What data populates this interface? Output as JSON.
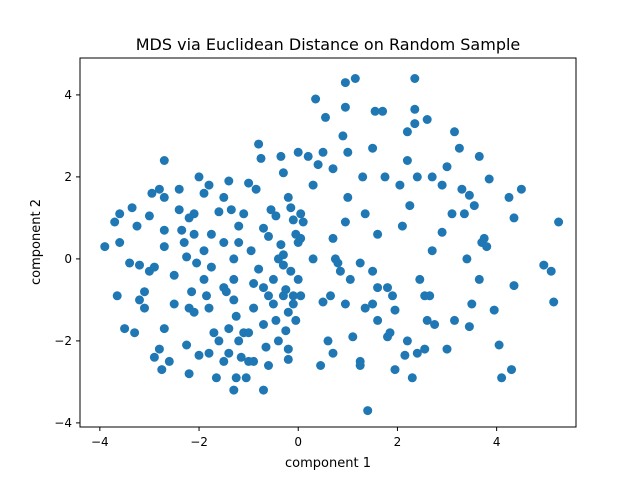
{
  "chart_data": {
    "type": "scatter",
    "title": "MDS via Euclidean Distance on Random Sample",
    "xlabel": "component 1",
    "ylabel": "component 2",
    "xlim": [
      -4.4,
      5.6
    ],
    "ylim": [
      -4.1,
      4.9
    ],
    "xticks": [
      -4,
      -2,
      0,
      2,
      4
    ],
    "yticks": [
      -4,
      -2,
      0,
      2,
      4
    ],
    "grid": false,
    "marker_color": "#1f77b4",
    "points": [
      [
        -3.9,
        0.3
      ],
      [
        -3.7,
        0.9
      ],
      [
        -3.6,
        1.1
      ],
      [
        -3.6,
        0.4
      ],
      [
        -3.65,
        -0.9
      ],
      [
        -3.4,
        -0.1
      ],
      [
        -3.35,
        1.25
      ],
      [
        -3.5,
        -1.7
      ],
      [
        -3.3,
        -1.8
      ],
      [
        -3.2,
        -1.0
      ],
      [
        -3.1,
        -1.2
      ],
      [
        -3.1,
        -0.8
      ],
      [
        -3.2,
        -0.15
      ],
      [
        -3.25,
        0.8
      ],
      [
        -3.0,
        1.05
      ],
      [
        -3.0,
        -0.3
      ],
      [
        -2.95,
        1.6
      ],
      [
        -2.9,
        -2.4
      ],
      [
        -2.8,
        -2.2
      ],
      [
        -2.8,
        1.7
      ],
      [
        -2.75,
        -2.7
      ],
      [
        -2.7,
        2.4
      ],
      [
        -2.7,
        1.5
      ],
      [
        -2.7,
        0.7
      ],
      [
        -2.7,
        0.3
      ],
      [
        -2.7,
        -1.7
      ],
      [
        -2.6,
        -2.5
      ],
      [
        -2.5,
        -0.4
      ],
      [
        -2.5,
        -1.1
      ],
      [
        -2.4,
        1.2
      ],
      [
        -2.4,
        1.7
      ],
      [
        -2.35,
        0.7
      ],
      [
        -2.3,
        0.4
      ],
      [
        -2.25,
        0.05
      ],
      [
        -2.25,
        -2.1
      ],
      [
        -2.2,
        1.0
      ],
      [
        -2.2,
        -2.8
      ],
      [
        -2.2,
        -1.2
      ],
      [
        -2.15,
        -0.8
      ],
      [
        -2.1,
        -1.3
      ],
      [
        -2.1,
        1.1
      ],
      [
        -2.1,
        0.6
      ],
      [
        -2.05,
        -0.1
      ],
      [
        -2.0,
        -2.35
      ],
      [
        -2.0,
        2.0
      ],
      [
        -1.9,
        1.6
      ],
      [
        -1.9,
        0.2
      ],
      [
        -1.9,
        -0.5
      ],
      [
        -1.85,
        -0.9
      ],
      [
        -1.8,
        -1.2
      ],
      [
        -1.8,
        -2.3
      ],
      [
        -1.8,
        1.8
      ],
      [
        -1.75,
        0.6
      ],
      [
        -1.75,
        -0.2
      ],
      [
        -1.7,
        -1.8
      ],
      [
        -1.65,
        -2.9
      ],
      [
        -1.6,
        -2.0
      ],
      [
        -1.6,
        1.15
      ],
      [
        -1.5,
        0.4
      ],
      [
        -1.5,
        -0.7
      ],
      [
        -1.5,
        1.5
      ],
      [
        -1.45,
        -0.8
      ],
      [
        -1.4,
        -2.3
      ],
      [
        -1.4,
        -1.7
      ],
      [
        -1.4,
        1.9
      ],
      [
        -1.35,
        1.2
      ],
      [
        -1.3,
        -1.0
      ],
      [
        -1.3,
        -0.5
      ],
      [
        -1.3,
        0.0
      ],
      [
        -1.25,
        -1.4
      ],
      [
        -1.25,
        -2.9
      ],
      [
        -1.2,
        0.8
      ],
      [
        -1.2,
        0.4
      ],
      [
        -1.2,
        -2.0
      ],
      [
        -1.15,
        -2.4
      ],
      [
        -1.1,
        1.1
      ],
      [
        -1.1,
        -1.8
      ],
      [
        -1.05,
        -2.9
      ],
      [
        -1.0,
        1.85
      ],
      [
        -1.0,
        -2.5
      ],
      [
        -0.95,
        0.2
      ],
      [
        -0.9,
        -0.6
      ],
      [
        -0.9,
        -1.2
      ],
      [
        -0.9,
        -2.5
      ],
      [
        -0.85,
        1.7
      ],
      [
        -0.8,
        2.8
      ],
      [
        -0.8,
        -0.25
      ],
      [
        -0.75,
        2.45
      ],
      [
        -0.7,
        -1.6
      ],
      [
        -0.7,
        -3.2
      ],
      [
        -0.7,
        0.75
      ],
      [
        -0.65,
        -2.15
      ],
      [
        -0.6,
        -2.6
      ],
      [
        -0.6,
        -0.9
      ],
      [
        -0.55,
        1.2
      ],
      [
        -0.5,
        -1.1
      ],
      [
        -0.45,
        -1.5
      ],
      [
        -0.4,
        -2.0
      ],
      [
        -0.35,
        2.5
      ],
      [
        -0.35,
        0.35
      ],
      [
        -0.3,
        0.1
      ],
      [
        -0.3,
        -0.15
      ],
      [
        -0.25,
        -0.75
      ],
      [
        -0.25,
        -1.75
      ],
      [
        -0.2,
        -2.45
      ],
      [
        -0.15,
        1.25
      ],
      [
        -0.1,
        0.95
      ],
      [
        -0.1,
        -1.1
      ],
      [
        -0.05,
        -1.5
      ],
      [
        -0.0,
        -0.5
      ],
      [
        0.0,
        2.6
      ],
      [
        0.0,
        0.4
      ],
      [
        -0.15,
        -0.3
      ],
      [
        -0.2,
        -2.2
      ],
      [
        -0.2,
        -1.3
      ],
      [
        -0.2,
        1.5
      ],
      [
        -0.1,
        -0.9
      ],
      [
        -0.05,
        0.6
      ],
      [
        0.05,
        0.5
      ],
      [
        0.05,
        1.1
      ],
      [
        0.05,
        -0.9
      ],
      [
        0.1,
        0.9
      ],
      [
        -0.3,
        2.1
      ],
      [
        -0.4,
        0.0
      ],
      [
        -0.5,
        -0.5
      ],
      [
        -0.6,
        0.55
      ],
      [
        -0.45,
        1.05
      ],
      [
        -0.7,
        -0.7
      ],
      [
        -1.0,
        -1.8
      ],
      [
        -0.3,
        -0.9
      ],
      [
        -1.3,
        -3.2
      ],
      [
        -1.5,
        -2.5
      ],
      [
        -2.9,
        -0.2
      ],
      [
        0.2,
        2.5
      ],
      [
        0.3,
        1.8
      ],
      [
        0.3,
        0.0
      ],
      [
        0.35,
        3.9
      ],
      [
        0.4,
        2.3
      ],
      [
        0.45,
        -2.6
      ],
      [
        0.5,
        2.6
      ],
      [
        0.5,
        -1.05
      ],
      [
        0.55,
        3.45
      ],
      [
        0.6,
        -2.0
      ],
      [
        0.65,
        -0.9
      ],
      [
        0.7,
        2.2
      ],
      [
        0.7,
        0.5
      ],
      [
        0.7,
        -2.3
      ],
      [
        0.75,
        0.0
      ],
      [
        0.8,
        -0.1
      ],
      [
        0.85,
        -0.3
      ],
      [
        0.9,
        3.0
      ],
      [
        0.95,
        4.3
      ],
      [
        0.95,
        3.7
      ],
      [
        0.95,
        -1.1
      ],
      [
        0.95,
        0.9
      ],
      [
        1.0,
        2.6
      ],
      [
        1.0,
        1.5
      ],
      [
        1.05,
        -0.5
      ],
      [
        1.1,
        -1.9
      ],
      [
        1.15,
        4.4
      ],
      [
        1.25,
        -2.5
      ],
      [
        1.25,
        -2.6
      ],
      [
        1.25,
        -0.1
      ],
      [
        1.3,
        2.0
      ],
      [
        1.35,
        1.1
      ],
      [
        1.35,
        -1.2
      ],
      [
        1.4,
        -3.7
      ],
      [
        1.5,
        -1.1
      ],
      [
        1.5,
        -0.3
      ],
      [
        1.5,
        2.7
      ],
      [
        1.55,
        3.6
      ],
      [
        1.6,
        -0.7
      ],
      [
        1.6,
        -1.5
      ],
      [
        1.6,
        0.6
      ],
      [
        1.7,
        3.6
      ],
      [
        1.75,
        2.0
      ],
      [
        1.8,
        -0.7
      ],
      [
        1.8,
        -1.9
      ],
      [
        1.85,
        -1.8
      ],
      [
        1.9,
        -0.9
      ],
      [
        1.95,
        -1.25
      ],
      [
        1.95,
        -2.7
      ],
      [
        2.05,
        1.8
      ],
      [
        2.1,
        0.8
      ],
      [
        2.15,
        -2.35
      ],
      [
        2.2,
        3.1
      ],
      [
        2.2,
        2.4
      ],
      [
        2.2,
        -2.0
      ],
      [
        2.25,
        1.3
      ],
      [
        2.3,
        -2.9
      ],
      [
        2.35,
        4.4
      ],
      [
        2.35,
        3.3
      ],
      [
        2.35,
        3.65
      ],
      [
        2.4,
        2.0
      ],
      [
        2.4,
        -2.3
      ],
      [
        2.45,
        -0.5
      ],
      [
        2.55,
        -2.2
      ],
      [
        2.55,
        -0.9
      ],
      [
        2.6,
        -1.5
      ],
      [
        2.6,
        3.4
      ],
      [
        2.65,
        -0.9
      ],
      [
        2.7,
        2.0
      ],
      [
        2.7,
        0.2
      ],
      [
        2.75,
        -1.6
      ],
      [
        2.9,
        0.65
      ],
      [
        2.9,
        1.8
      ],
      [
        3.0,
        -2.2
      ],
      [
        3.0,
        2.25
      ],
      [
        3.1,
        1.1
      ],
      [
        3.15,
        3.1
      ],
      [
        3.15,
        -1.5
      ],
      [
        3.25,
        2.7
      ],
      [
        3.3,
        1.7
      ],
      [
        3.35,
        1.1
      ],
      [
        3.4,
        0.0
      ],
      [
        3.45,
        -1.65
      ],
      [
        3.5,
        -1.1
      ],
      [
        3.55,
        1.3
      ],
      [
        3.65,
        -0.5
      ],
      [
        3.65,
        2.5
      ],
      [
        3.7,
        0.4
      ],
      [
        3.75,
        0.5
      ],
      [
        3.85,
        1.95
      ],
      [
        3.95,
        -1.25
      ],
      [
        4.05,
        -2.1
      ],
      [
        4.1,
        -2.9
      ],
      [
        4.25,
        1.5
      ],
      [
        4.35,
        1.0
      ],
      [
        4.35,
        -0.65
      ],
      [
        4.5,
        1.7
      ],
      [
        4.95,
        -0.15
      ],
      [
        5.1,
        -0.3
      ],
      [
        5.15,
        -1.05
      ],
      [
        5.25,
        0.9
      ],
      [
        4.3,
        -2.7
      ],
      [
        3.45,
        1.55
      ],
      [
        3.8,
        0.3
      ]
    ]
  }
}
